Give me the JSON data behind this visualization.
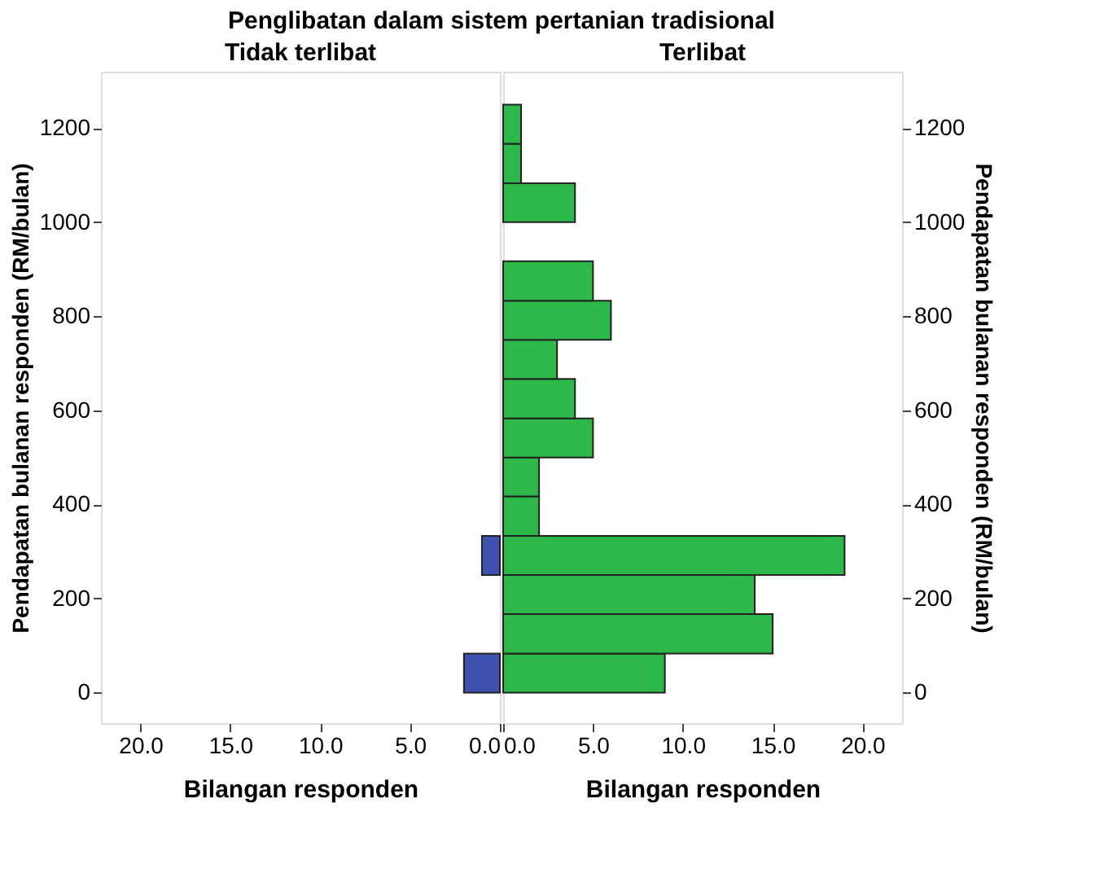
{
  "chart_data": [
    {
      "type": "histogram",
      "orientation": "horizontal",
      "title": "Penglibatan dalam sistem pertanian tradisional",
      "subtitle": "Tidak terlibat",
      "xlabel": "Bilangan responden",
      "ylabel": "Pendapatan bulanan responden (RM/bulan)",
      "color": "#3f51b0",
      "bins": [
        0,
        83,
        250,
        333
      ],
      "values": [
        2,
        0,
        1
      ],
      "xlim": [
        22.2,
        0
      ],
      "xticks": [
        {
          "value": 20,
          "label": "20.0"
        },
        {
          "value": 15,
          "label": "15.0"
        },
        {
          "value": 10,
          "label": "10.0"
        },
        {
          "value": 5,
          "label": "5.0"
        },
        {
          "value": 0,
          "label": "0.0"
        }
      ],
      "ylim": [
        -65,
        1320
      ],
      "yticks": [
        0,
        200,
        400,
        600,
        800,
        1000,
        1200
      ],
      "grid": false
    },
    {
      "type": "histogram",
      "orientation": "horizontal",
      "subtitle": "Terlibat",
      "xlabel": "Bilangan responden",
      "ylabel": "Pendapatan bulanan responden (RM/bulan)",
      "color": "#2db84a",
      "bins": [
        0,
        83,
        167,
        250,
        333,
        417,
        500,
        583,
        667,
        750,
        833,
        917,
        1000,
        1083,
        1167,
        1250
      ],
      "values": [
        9,
        15,
        14,
        19,
        2,
        2,
        5,
        4,
        3,
        6,
        5,
        0,
        4,
        1,
        1
      ],
      "xlim": [
        0,
        22.2
      ],
      "xticks": [
        {
          "value": 0,
          "label": "0.0"
        },
        {
          "value": 5,
          "label": "5.0"
        },
        {
          "value": 10,
          "label": "10.0"
        },
        {
          "value": 15,
          "label": "15.0"
        },
        {
          "value": 20,
          "label": "20.0"
        }
      ],
      "ylim": [
        -65,
        1320
      ],
      "yticks": [
        0,
        200,
        400,
        600,
        800,
        1000,
        1200
      ],
      "grid": false
    }
  ]
}
